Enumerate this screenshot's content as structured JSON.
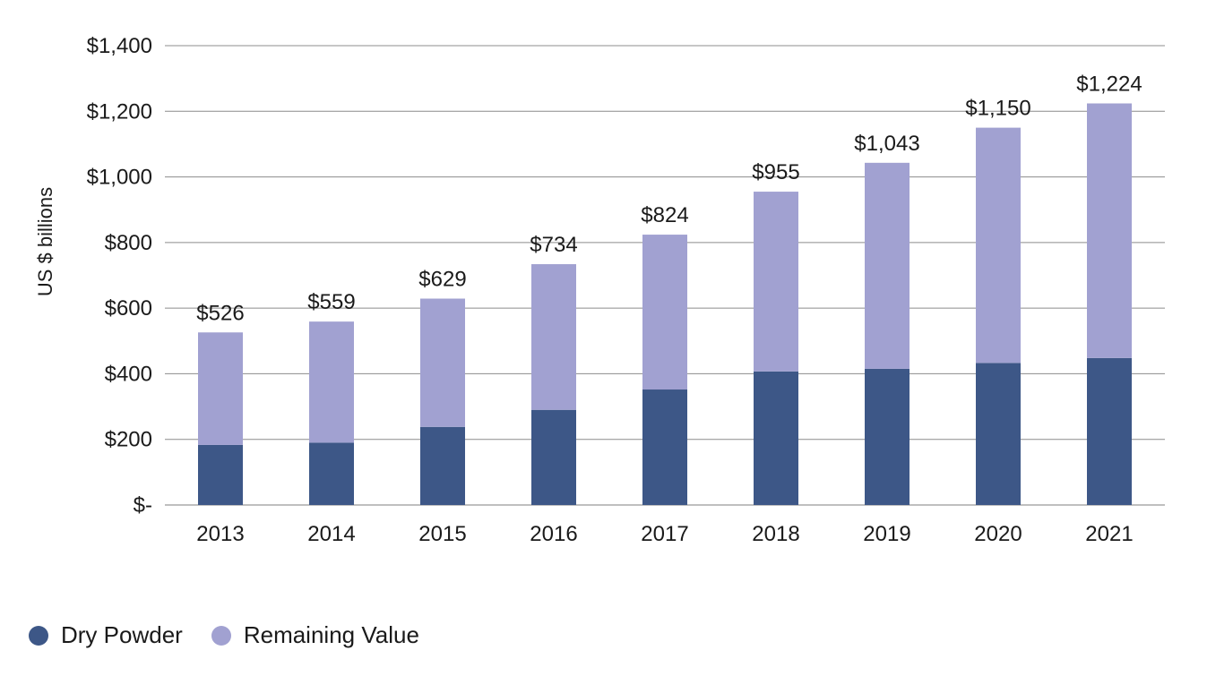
{
  "chart_data": {
    "type": "bar",
    "stacked": true,
    "title": "",
    "xlabel": "",
    "ylabel": "US $ billions",
    "ylim": [
      0,
      1400
    ],
    "yticks": [
      0,
      200,
      400,
      600,
      800,
      1000,
      1200,
      1400
    ],
    "ytick_labels": [
      "$-",
      "$200",
      "$400",
      "$600",
      "$800",
      "$1,000",
      "$1,200",
      "$1,400"
    ],
    "categories": [
      "2013",
      "2014",
      "2015",
      "2016",
      "2017",
      "2018",
      "2019",
      "2020",
      "2021"
    ],
    "series": [
      {
        "name": "Dry Powder",
        "color": "#3d5787",
        "values": [
          183,
          190,
          238,
          290,
          352,
          407,
          415,
          433,
          448
        ]
      },
      {
        "name": "Remaining Value",
        "color": "#a1a1d1",
        "values": [
          343,
          369,
          391,
          444,
          472,
          548,
          628,
          717,
          776
        ]
      }
    ],
    "totals": [
      526,
      559,
      629,
      734,
      824,
      955,
      1043,
      1150,
      1224
    ],
    "total_labels": [
      "$526",
      "$559",
      "$629",
      "$734",
      "$824",
      "$955",
      "$1,043",
      "$1,150",
      "$1,224"
    ],
    "grid": true,
    "legend_position": "bottom-left"
  }
}
